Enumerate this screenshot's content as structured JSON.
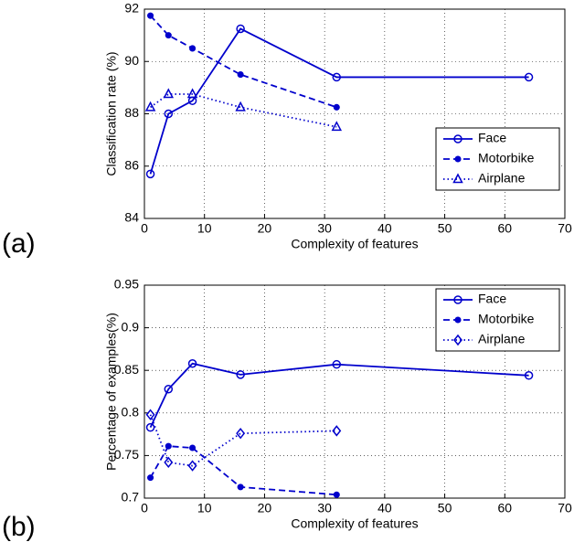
{
  "chart_data": [
    {
      "type": "line",
      "panel_label": "(a)",
      "xlabel": "Complexity of features",
      "ylabel": "Classification rate (%)",
      "xlim": [
        0,
        70
      ],
      "xticks": [
        0,
        10,
        20,
        30,
        40,
        50,
        60,
        70
      ],
      "ylim": [
        84,
        92
      ],
      "yticks": [
        84,
        86,
        88,
        90,
        92
      ],
      "grid": true,
      "legend": "lower right",
      "series": [
        {
          "name": "Face",
          "color": "#0000cc",
          "linestyle": "solid",
          "marker": "circle",
          "x": [
            1,
            4,
            8,
            16,
            32,
            64
          ],
          "values": [
            85.7,
            88.0,
            88.5,
            91.25,
            89.4,
            89.4
          ]
        },
        {
          "name": "Motorbike",
          "color": "#0000cc",
          "linestyle": "dashed",
          "marker": "dot",
          "x": [
            1,
            4,
            8,
            16,
            32
          ],
          "values": [
            91.75,
            91.0,
            90.5,
            89.5,
            88.25
          ]
        },
        {
          "name": "Airplane",
          "color": "#0000cc",
          "linestyle": "dotted",
          "marker": "triangle",
          "x": [
            1,
            4,
            8,
            16,
            32
          ],
          "values": [
            88.25,
            88.75,
            88.75,
            88.25,
            87.5
          ]
        }
      ]
    },
    {
      "type": "line",
      "panel_label": "(b)",
      "xlabel": "Complexity of features",
      "ylabel": "Percentage of examples(%)",
      "xlim": [
        0,
        70
      ],
      "xticks": [
        0,
        10,
        20,
        30,
        40,
        50,
        60,
        70
      ],
      "ylim": [
        0.7,
        0.95
      ],
      "yticks": [
        0.7,
        0.75,
        0.8,
        0.85,
        0.9,
        0.95
      ],
      "grid": true,
      "legend": "upper right",
      "series": [
        {
          "name": "Face",
          "color": "#0000cc",
          "linestyle": "solid",
          "marker": "circle",
          "x": [
            1,
            4,
            8,
            16,
            32,
            64
          ],
          "values": [
            0.783,
            0.828,
            0.858,
            0.845,
            0.857,
            0.844
          ]
        },
        {
          "name": "Motorbike",
          "color": "#0000cc",
          "linestyle": "dashed",
          "marker": "dot",
          "x": [
            1,
            4,
            8,
            16,
            32
          ],
          "values": [
            0.724,
            0.761,
            0.759,
            0.713,
            0.704
          ]
        },
        {
          "name": "Airplane",
          "color": "#0000cc",
          "linestyle": "dotted",
          "marker": "diamond",
          "x": [
            1,
            4,
            8,
            16,
            32
          ],
          "values": [
            0.798,
            0.742,
            0.738,
            0.776,
            0.779
          ]
        }
      ]
    }
  ]
}
